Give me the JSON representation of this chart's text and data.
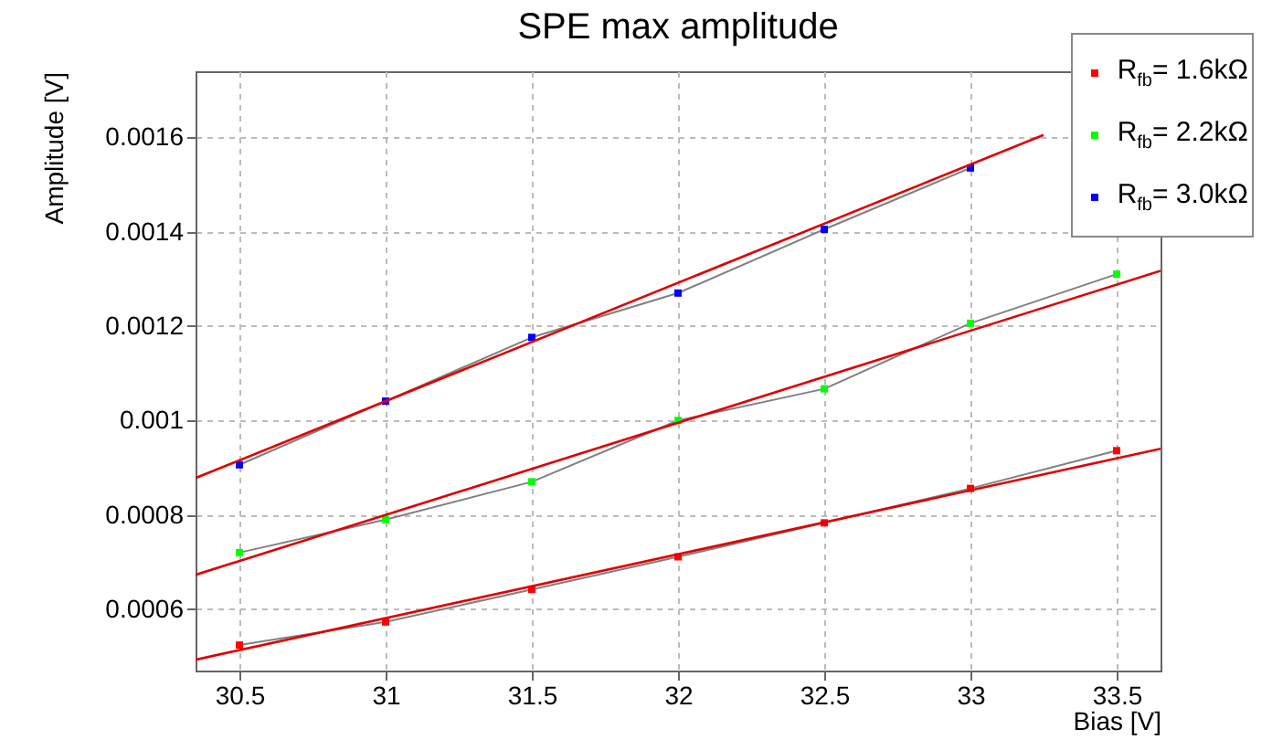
{
  "chart_data": {
    "type": "line",
    "title": "SPE max amplitude",
    "xlabel": "Bias [V]",
    "ylabel": "Amplitude [V]",
    "xlim": [
      30.35,
      33.65
    ],
    "xticks": [
      30.5,
      31,
      31.5,
      32,
      32.5,
      33,
      33.5
    ],
    "ylim": [
      0.00047,
      0.00174
    ],
    "yticks": [
      0.0006,
      0.0008,
      0.001,
      0.0012,
      0.0014,
      0.0016
    ],
    "grid": true,
    "legend": "top right",
    "marker": "square",
    "line_style": "solid",
    "x": [
      30.5,
      31,
      31.5,
      32,
      32.5,
      33,
      33.5
    ],
    "series": [
      {
        "name": "R$_{fb}$= 1.6kΩ",
        "color": "#ff0000",
        "values": [
          0.000524,
          0.000573,
          0.000642,
          0.000711,
          0.000783,
          0.000856,
          0.000936
        ]
      },
      {
        "name": "R$_{fb}$= 2.2kΩ",
        "color": "#00ff00",
        "values": [
          0.00072,
          0.00079,
          0.00087,
          0.001,
          0.001067,
          0.001206,
          0.00131
        ]
      },
      {
        "name": "R$_{fb}$= 3.0kΩ",
        "color": "#0000ff",
        "values": [
          0.000906,
          0.001041,
          0.001176,
          0.00127,
          0.001405,
          0.001535,
          null
        ]
      },
      {
        "type": "line",
        "marker": "none",
        "color": "#e00000",
        "x": [
          30.35,
          33.65
        ],
        "values": [
          0.000493,
          0.00094
        ]
      },
      {
        "type": "line",
        "marker": "none",
        "color": "#e00000",
        "x": [
          30.35,
          33.65
        ],
        "values": [
          0.000673,
          0.001317
        ]
      },
      {
        "type": "line",
        "marker": "none",
        "color": "#e00000",
        "x": [
          30.35,
          33.25
        ],
        "values": [
          0.000878,
          0.001605
        ]
      }
    ]
  }
}
